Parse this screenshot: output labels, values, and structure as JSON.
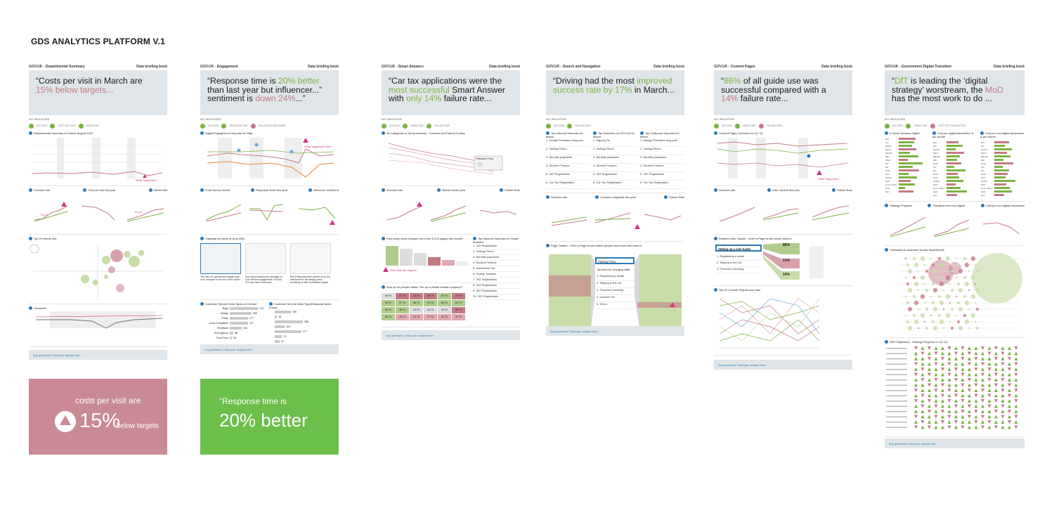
{
  "platform_title": "GDS ANALYTICS PLATFORM V.1",
  "briefing_label": "Data briefing book",
  "footer_text": "Any questions? Mail your analyst here",
  "key_indicators_label": "KEY INDICATORS",
  "legend": {
    "success": "SUCCESS",
    "cost_per_visit": "COST PER VISIT",
    "needs_met": "NEEDS MET",
    "response_time": "RESPONSE TIME",
    "influencer": "INFLUENCER SENTIMENT",
    "failure_rate": "FAILURE RATE",
    "trans_time": "TRANS TIME",
    "cost_per_trans": "COST PER TRANSACTION"
  },
  "colors": {
    "pink": "#c47a86",
    "green": "#7cb342",
    "quote_bg": "#dfe5e8",
    "blue": "#2b7bb9",
    "magenta": "#d63384",
    "card_pink": "#c98a95",
    "card_green": "#6bbf4a"
  },
  "panels": [
    {
      "head": "GOV.UK - Departmental Summary",
      "quote_a": "“Costs per visit in March are ",
      "quote_b": "15% below targets...",
      "s1": "Departmental Summary for March-August 2012",
      "s2a": "Success rate",
      "s2b": "Cost per visit this year",
      "s2c": "Needs Met",
      "s3": "Top 15 Needs met",
      "s4": "Vacancies",
      "annot": "What happened?",
      "target": "Target"
    },
    {
      "head": "GOV.UK - Engagement",
      "quote_a": "“Response time is ",
      "quote_b": "20% better",
      "quote_c": " than last year but influencer...” sentiment is ",
      "quote_d": "down 24%",
      "quote_e": "...”",
      "s1": "Digital Engagement Overview for May",
      "annot": "What happened here?",
      "s2a": "Trust Survey results",
      "s2b": "Response times this year",
      "s2c": "Influencer sentiment",
      "s3": "Clippings for week of June 24th",
      "clip1": "“the new UK government digital work is an example to the rest of the world”",
      "clip2": "Error spot-flooding the message on Civil Service engagement ~£3 had 270 new users that week.",
      "clip3": "Ben's Blog has been picked up by key influencers in the design press, providing us with recruitment capital.",
      "s4a": "Customer Service Desk Types of Contact",
      "s4b": "Customer Service Desk Type/Response times (mins)",
      "contacts": [
        {
          "label": "Bugs",
          "value": "734"
        },
        {
          "label": "Design",
          "value": "565"
        },
        {
          "label": "Policy",
          "value": "477"
        },
        {
          "label": "Local Complaints",
          "value": "477"
        },
        {
          "label": "Feedback",
          "value": "318"
        },
        {
          "label": "Govt Agency",
          "value": "88"
        },
        {
          "label": "Front Door",
          "value": "53"
        }
      ],
      "contact_values": [
        734,
        565,
        477,
        477,
        318,
        88,
        53
      ],
      "times": [
        {
          "value": "165"
        },
        {
          "value": "18"
        },
        {
          "value": "288"
        },
        {
          "value": "104"
        },
        {
          "value": "277"
        },
        {
          "value": "74"
        },
        {
          "value": "47"
        }
      ],
      "time_values": [
        165,
        18,
        288,
        104,
        277,
        74,
        47
      ]
    },
    {
      "head": "GOV.UK - Smart Answers",
      "quote_a": "“Car tax applications were the ",
      "quote_b": "most successful",
      "quote_c": " Smart Answer with ",
      "quote_d": "only 14%",
      "quote_e": " failure rate...",
      "s1": "All Categories of Smart Answers - Success and Failure for May",
      "tip": "Passport Help",
      "s2a": "Success rate",
      "s2b": "Needs solved year",
      "s2c": "Failure Rate",
      "s3a": "How many users dropped out of the DVLA signup this month?",
      "s3b": "Top Inbound Searches for Smart Answers",
      "annot": "Who sets the targets?",
      "searches": [
        "1. VAT Registration",
        "2. Visiting Prison",
        "3. Benefits payments",
        "4. Student Finance",
        "5. Inheritance Tax",
        "6. Charity Taxation",
        "7. VAT Registration",
        "8. VAT Registration",
        "9. VAT Registration",
        "10. VAT Registration"
      ],
      "s4": "How do do people realise “Set up a private limited company?”",
      "grid": [
        [
          "46 %",
          "87 %",
          "79 %",
          "88 %",
          "57 %",
          "74 %"
        ],
        [
          "56 %",
          "57 %",
          "58 %",
          "63 %",
          "64 %",
          "61 %"
        ],
        [
          "56 %",
          "58 %",
          "43 %",
          "44 %",
          "44 %",
          "82 %"
        ],
        [
          "56 %",
          "28 %",
          "37 %",
          "27 %",
          "32 %",
          "37 %"
        ]
      ],
      "grid_values": [
        [
          46,
          87,
          79,
          88,
          57,
          74
        ],
        [
          56,
          57,
          58,
          63,
          64,
          61
        ],
        [
          56,
          58,
          43,
          44,
          44,
          82
        ],
        [
          56,
          28,
          37,
          27,
          32,
          37
        ]
      ]
    },
    {
      "head": "GOV.UK - Search and Navigation",
      "quote_a": "“Driving had the most ",
      "quote_b": "improved success rate by 17%",
      "quote_c": " in March...",
      "s1a": "Top Inbound Searches for March",
      "s1b": "Top Searches on GOV.UK for March",
      "s1c": "Top Outbound Searches for March",
      "inbound": [
        "1. Design Principles blog post",
        "2. Visiting Prison",
        "3. Benefits payments",
        "4. Student Finance",
        "5. VAT Registration",
        "6. Car Tax Registration"
      ],
      "searches": [
        "1. Signing On",
        "2. Visiting Prison",
        "3. Benefits payments",
        "4. Student Finance",
        "5. VAT Registration",
        "6. Car Tax Registration"
      ],
      "outbound": [
        "1. Design Principles blog post",
        "2. Visiting Prison",
        "3. Benefits payments",
        "4. Student Finance",
        "5. VAT Registration",
        "6. Car Tax Registration"
      ],
      "s2a": "Success rate",
      "s2b": "Content complaints this year",
      "s2c": "Failure Rate",
      "s3": "Page Tracker - Enter a Page to see where people came from and went to",
      "tracked": "Parking Fines",
      "top_picks": "Top picks for changing traffic",
      "picks": [
        "1. Registering a death",
        "2. Staying in the UK",
        "3. Firearms Licensing",
        "4. Licence Fee",
        "5. DVLA"
      ]
    },
    {
      "head": "GOV.UK - Content Pages",
      "quote_a": "“",
      "quote_b": "86%",
      "quote_c": " of all guide use was successful compared with a ",
      "quote_d": "14%",
      "quote_e": " failure rate...",
      "s1": "Content Pages Overview for Q1 Q2",
      "annot": "What happened?",
      "s2a": "Success rate",
      "s2b": "User Volume this year",
      "s2c": "Failure Rate",
      "s3": "Related Links Tracker - Enter a Page to see where want to",
      "tracked": "Setting up a sole trader",
      "links": [
        "1. Registering a death",
        "2. Staying in the UK",
        "3. Firearms Licensing"
      ],
      "pcts": [
        "86%",
        "21%",
        "14%"
      ],
      "s4": "Top 20 Content Objects your time"
    },
    {
      "head": "GOV.UK - Government Digital Transition",
      "quote_a": "“",
      "quote_b": "DfT",
      "quote_c": " is leading the ‘digital strategy’ worstream, the ",
      "quote_d": "MoD",
      "quote_e": " has the most work to do ...",
      "s1a": "5 Depts Services Digital",
      "s1b": "Cost per digital transaction & per month",
      "s1c": "Cost per non digital transaction & per month",
      "s2a": "Strategy Progress",
      "s2b": "Transition from non digital",
      "s2c": "Cost per non digital transaction",
      "s3": "Transactions compared across departments",
      "s4": "SRO Objectives - Strategy Progress for Q1 Q2",
      "depts": [
        "BIS",
        "CO",
        "DCMS",
        "DECC",
        "DEFRA",
        "DfE",
        "DFID",
        "DfT",
        "DH",
        "DWP",
        "FCO",
        "HMRC",
        "HMT",
        "Home Office",
        "MoD",
        "MoJ"
      ],
      "dept_digital": [
        0.58,
        0.52,
        0.45,
        0.6,
        0.38,
        0.66,
        0.3,
        0.8,
        0.48,
        0.7,
        0.34,
        0.62,
        0.4,
        0.55,
        0.22,
        0.5
      ],
      "dept_cost": [
        0.4,
        0.55,
        0.3,
        0.6,
        0.45,
        0.35,
        0.5,
        0.25,
        0.65,
        0.38,
        0.42,
        0.58,
        0.32,
        0.48,
        0.7,
        0.36
      ],
      "dept_noncost": [
        0.5,
        0.35,
        0.6,
        0.42,
        0.55,
        0.3,
        0.65,
        0.28,
        0.5,
        0.45,
        0.38,
        0.72,
        0.4,
        0.52,
        0.6,
        0.34
      ]
    }
  ],
  "card1": {
    "line1": "costs per visit are",
    "big": "15%",
    "tail": "below targets"
  },
  "card2": {
    "line1": "“Response time is",
    "big": "20% better"
  }
}
